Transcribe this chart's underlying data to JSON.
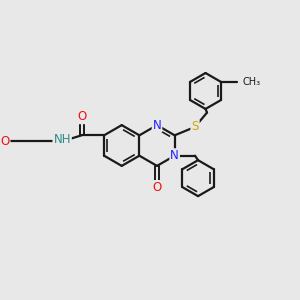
{
  "bg_color": "#e8e8e8",
  "bond_color": "#1a1a1a",
  "bond_lw": 1.6,
  "atom_colors": {
    "N": "#2020ff",
    "O": "#ee1111",
    "S": "#ccaa00",
    "NH": "#2e8b8b",
    "C": "#1a1a1a"
  },
  "font_size": 8.5,
  "figsize": [
    3.0,
    3.0
  ],
  "dpi": 100
}
